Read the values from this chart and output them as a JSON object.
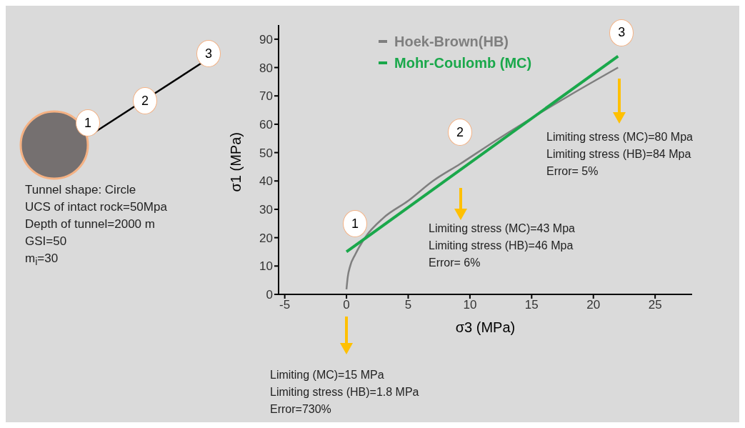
{
  "chart_data": {
    "type": "line",
    "xlabel": "σ3 (MPa)",
    "ylabel": "σ1 (MPa)",
    "xlim": [
      -5.5,
      28
    ],
    "xticks": [
      -5,
      0,
      5,
      10,
      15,
      20,
      25
    ],
    "ylim": [
      0,
      95
    ],
    "yticks": [
      0,
      10,
      20,
      30,
      40,
      50,
      60,
      70,
      80,
      90
    ],
    "grid": false,
    "legend": "top left",
    "series": [
      {
        "name": "Hoek-Brown(HB)",
        "color": "#7f7f7f",
        "x": [
          0,
          0.1,
          0.3,
          0.7,
          1.5,
          3,
          5,
          7,
          9.2,
          12,
          18,
          22
        ],
        "values": [
          1.8,
          6,
          10,
          14,
          20,
          27,
          33,
          40,
          46,
          54,
          70,
          80
        ]
      },
      {
        "name": "Mohr-Coulomb (MC)",
        "color": "#1aa84b",
        "x": [
          0,
          22
        ],
        "values": [
          15,
          84
        ]
      }
    ],
    "annotations": [
      {
        "text": "1",
        "x": 0,
        "y": 15
      },
      {
        "text": "2",
        "x": 9.2,
        "y": 44
      },
      {
        "text": "3",
        "x": 22,
        "y": 84
      },
      "Limiting (MC)=15 MPa\nLimiting stress (HB)=1.8 MPa\nError=730%",
      "Limiting stress (MC)=43 Mpa\nLimiting stress (HB)=46 Mpa\nError= 6%",
      "Limiting stress (MC)=80 Mpa\nLimiting stress (HB)=84 Mpa\nError= 5%",
      "1",
      "2",
      "3",
      "Tunnel shape: Circle\nUCS of intact rock=50Mpa\nDepth of tunnel=2000 m\nGSI=50\nm$_{i}$=30"
    ]
  }
}
